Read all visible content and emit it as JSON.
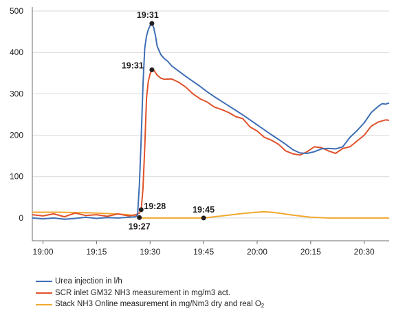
{
  "chart_data": {
    "type": "line",
    "title": "",
    "xlabel": "",
    "ylabel": "",
    "x_tick_labels": [
      "19:00",
      "19:15",
      "19:30",
      "19:45",
      "20:00",
      "20:15",
      "20:30"
    ],
    "x_tick_minutes": [
      0,
      15,
      30,
      45,
      60,
      75,
      90
    ],
    "xlim_minutes": [
      -3,
      97
    ],
    "y_ticks": [
      0,
      100,
      200,
      300,
      400,
      500
    ],
    "ylim": [
      -55,
      510
    ],
    "grid": "horizontal",
    "legend_position": "bottom",
    "series": [
      {
        "name": "Urea injection in l/h",
        "color": "#3f6fb5",
        "x": [
          -3,
          0,
          3,
          6,
          9,
          12,
          15,
          18,
          21,
          24,
          26,
          26.5,
          27,
          27.5,
          28,
          28.5,
          29,
          29.5,
          30,
          30.5,
          31,
          31.5,
          32,
          33,
          34,
          35,
          36,
          38,
          40,
          42,
          44,
          46,
          48,
          50,
          52,
          54,
          56,
          58,
          60,
          62,
          64,
          66,
          68,
          70,
          72,
          74,
          76,
          78,
          80,
          82,
          84,
          86,
          88,
          90,
          92,
          94,
          95,
          96,
          97
        ],
        "y": [
          0,
          -2,
          0,
          -3,
          -1,
          2,
          -1,
          1,
          0,
          2,
          3,
          8,
          80,
          190,
          320,
          410,
          440,
          455,
          465,
          470,
          460,
          440,
          415,
          395,
          385,
          378,
          368,
          355,
          342,
          330,
          318,
          305,
          293,
          282,
          271,
          260,
          249,
          237,
          225,
          213,
          201,
          190,
          178,
          165,
          157,
          156,
          160,
          167,
          168,
          167,
          172,
          195,
          211,
          230,
          255,
          270,
          276,
          275,
          278
        ],
        "labels": [
          {
            "x": 30.5,
            "y": 470,
            "text": "19:31"
          }
        ]
      },
      {
        "name": "SCR inlet GM32 NH3 measurement in mg/m3 act.",
        "color": "#e0522b",
        "x": [
          -3,
          0,
          3,
          6,
          9,
          12,
          15,
          18,
          21,
          24,
          26,
          27,
          27.5,
          28,
          28.5,
          29,
          29.5,
          30,
          30.5,
          31,
          32,
          33,
          34,
          36,
          38,
          40,
          42,
          44,
          46,
          48,
          50,
          52,
          54,
          56,
          58,
          60,
          62,
          64,
          66,
          68,
          70,
          72,
          74,
          76,
          78,
          80,
          82,
          84,
          86,
          88,
          90,
          92,
          94,
          96,
          97
        ],
        "y": [
          8,
          5,
          10,
          3,
          12,
          6,
          8,
          4,
          10,
          5,
          8,
          12,
          20,
          70,
          170,
          290,
          330,
          348,
          358,
          358,
          345,
          338,
          335,
          336,
          328,
          316,
          300,
          288,
          280,
          268,
          262,
          255,
          245,
          240,
          220,
          210,
          195,
          188,
          178,
          162,
          155,
          152,
          160,
          172,
          170,
          162,
          156,
          168,
          172,
          186,
          200,
          222,
          232,
          237,
          236
        ],
        "labels": [
          {
            "x": 30.5,
            "y": 358,
            "text": "19:31"
          },
          {
            "x": 27.5,
            "y": 20,
            "text": "19:28"
          }
        ]
      },
      {
        "name": "Stack NH3 Online measurement in mg/Nm3 dry and real O2",
        "color": "#f0a82e",
        "x": [
          -3,
          0,
          5,
          10,
          15,
          20,
          24,
          26,
          27,
          28,
          30,
          35,
          40,
          45,
          48,
          52,
          56,
          60,
          62,
          64,
          66,
          70,
          75,
          80,
          85,
          90,
          97
        ],
        "y": [
          14,
          14,
          14,
          13,
          12,
          10,
          8,
          5,
          1,
          0,
          0,
          0,
          0,
          0,
          3,
          7,
          11,
          14,
          15,
          14,
          12,
          7,
          2,
          0,
          0,
          0,
          0
        ],
        "labels": [
          {
            "x": 27,
            "y": 1,
            "text": "19:27"
          },
          {
            "x": 45,
            "y": 0,
            "text": "19:45"
          }
        ]
      }
    ]
  }
}
